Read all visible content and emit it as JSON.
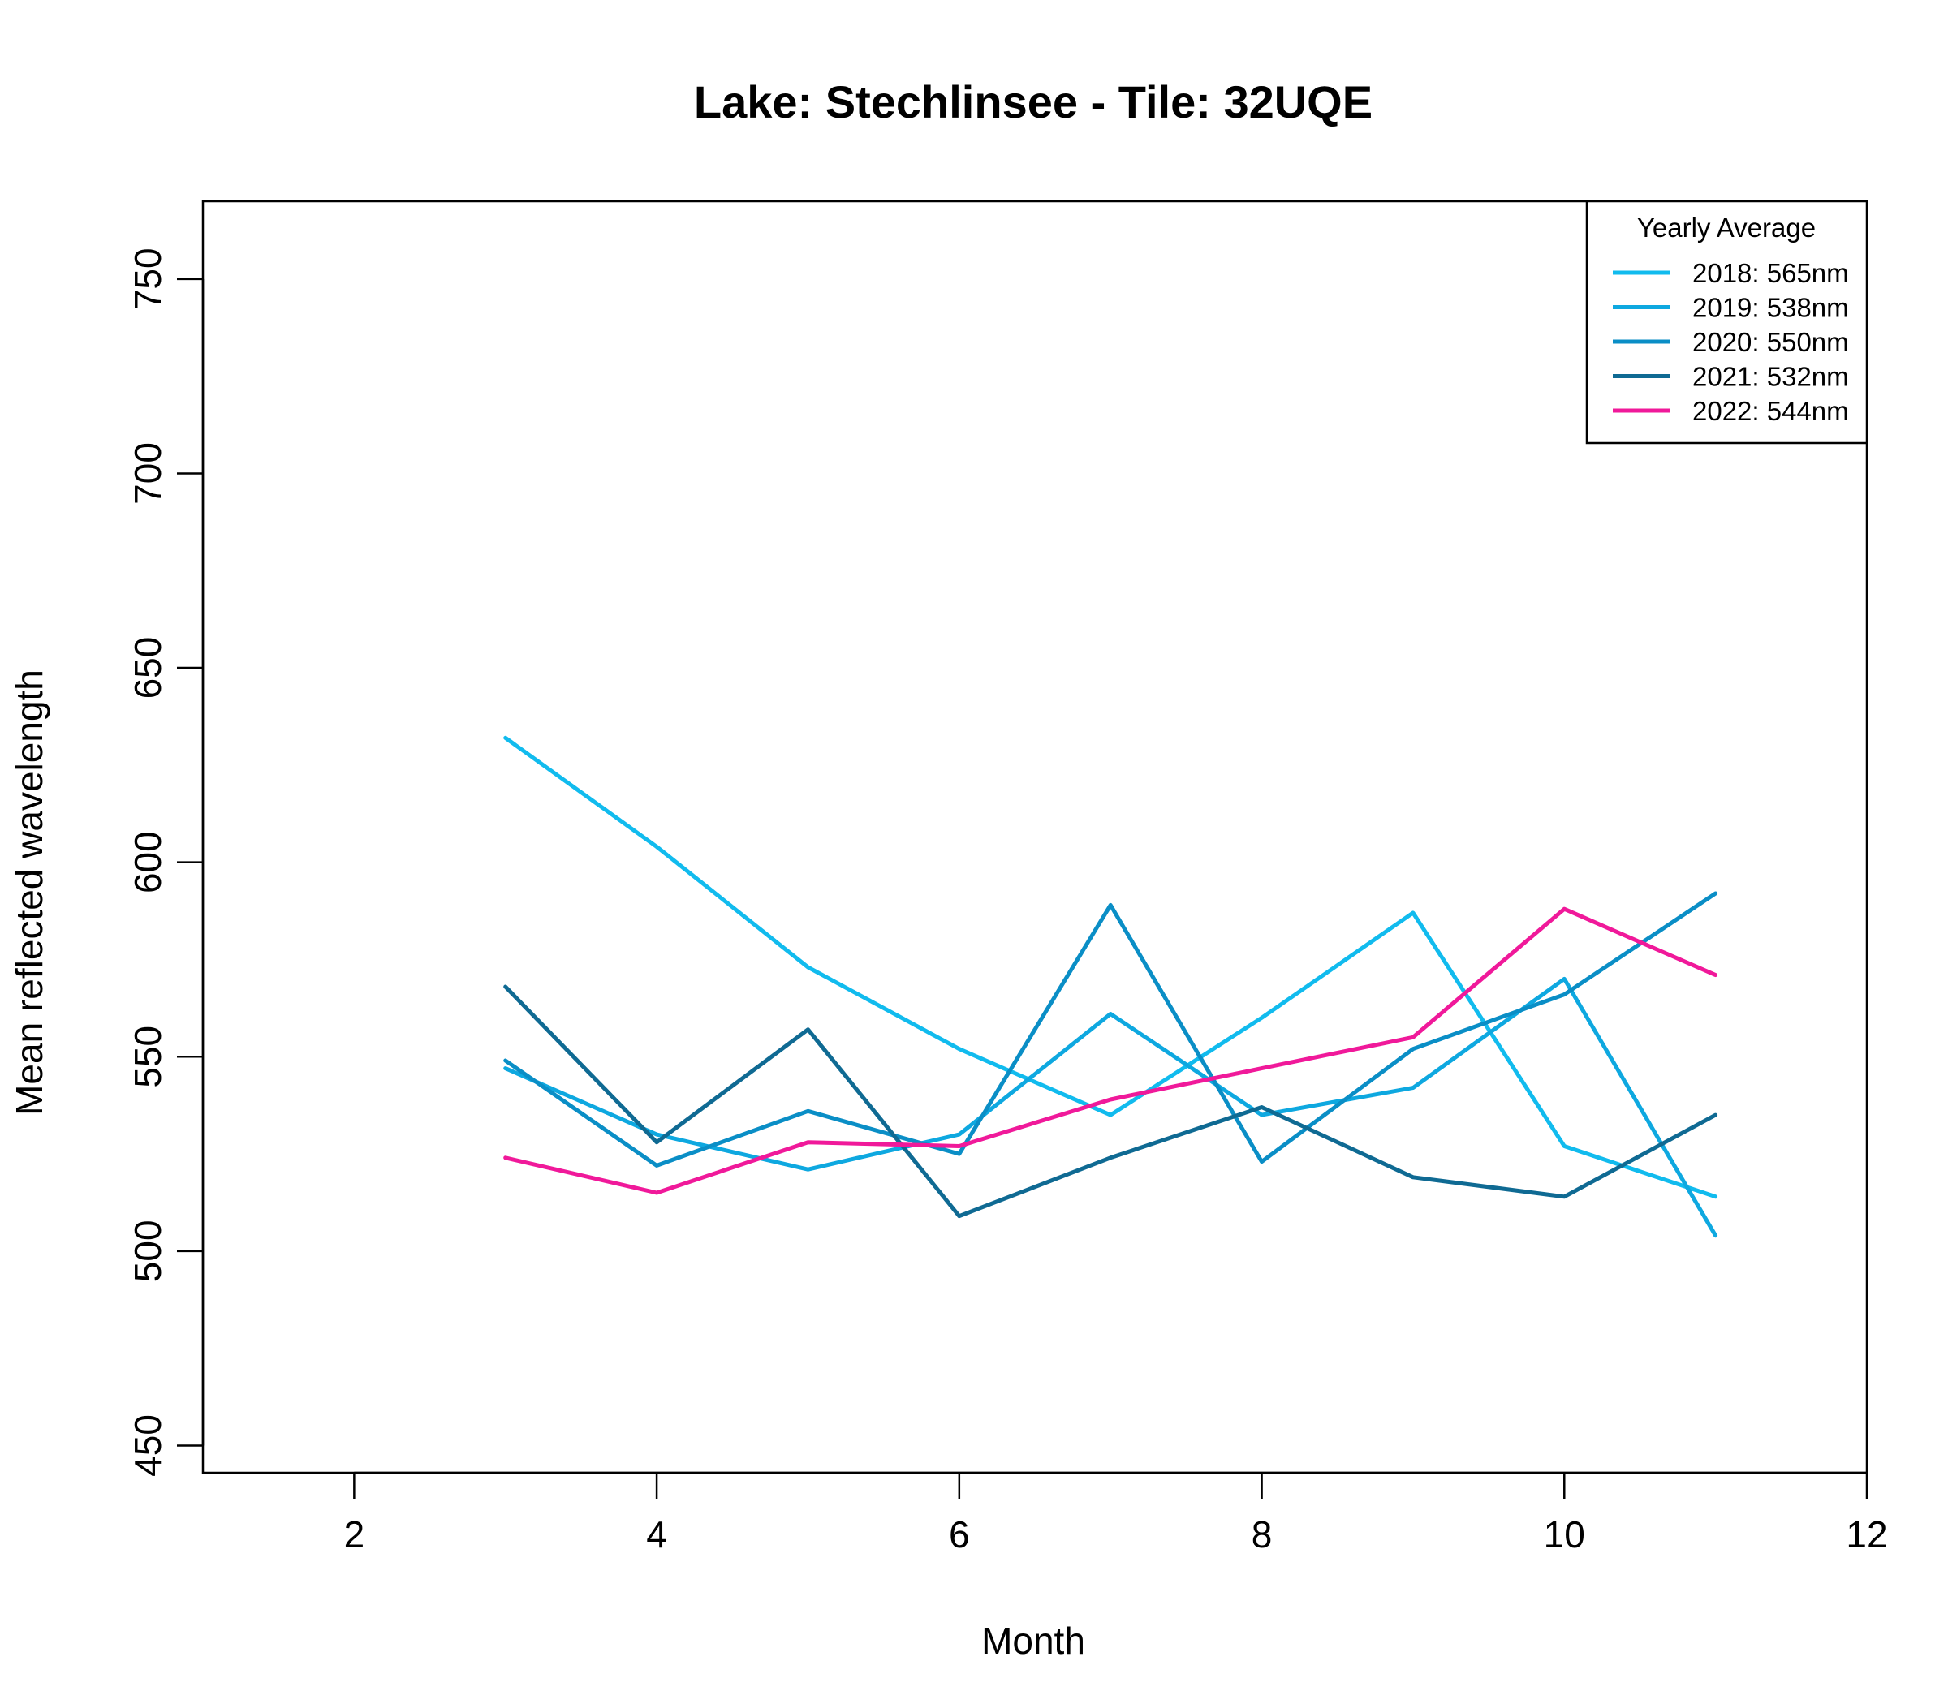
{
  "chart_data": {
    "type": "line",
    "title": "Lake: Stechlinsee  - Tile: 32UQE",
    "xlabel": "Month",
    "ylabel": "Mean reflected wavelength",
    "xlim": [
      1,
      12
    ],
    "ylim": [
      443,
      770
    ],
    "xticks": [
      2,
      4,
      6,
      8,
      10,
      12
    ],
    "yticks": [
      450,
      500,
      550,
      600,
      650,
      700,
      750
    ],
    "grid": false,
    "legend": {
      "title": "Yearly Average",
      "position": "top-right",
      "entries": [
        "2018: 565nm",
        "2019: 538nm",
        "2020: 550nm",
        "2021: 532nm",
        "2022: 544nm"
      ]
    },
    "x": [
      3,
      4,
      5,
      6,
      7,
      8,
      9,
      10,
      11
    ],
    "series": [
      {
        "legend_index": 0,
        "color": "#11BBEE",
        "values": [
          632,
          604,
          573,
          552,
          535,
          560,
          587,
          527,
          514
        ]
      },
      {
        "legend_index": 1,
        "color": "#0EA8E0",
        "values": [
          547,
          530,
          521,
          530,
          561,
          535,
          542,
          570,
          504
        ]
      },
      {
        "legend_index": 2,
        "color": "#0A8EC6",
        "values": [
          549,
          522,
          536,
          525,
          589,
          523,
          552,
          566,
          592
        ]
      },
      {
        "legend_index": 3,
        "color": "#0F6A93",
        "values": [
          568,
          528,
          557,
          509,
          524,
          537,
          519,
          514,
          535
        ]
      },
      {
        "legend_index": 4,
        "color": "#F0199A",
        "values": [
          524,
          515,
          528,
          527,
          539,
          547,
          555,
          588,
          571
        ]
      }
    ]
  }
}
